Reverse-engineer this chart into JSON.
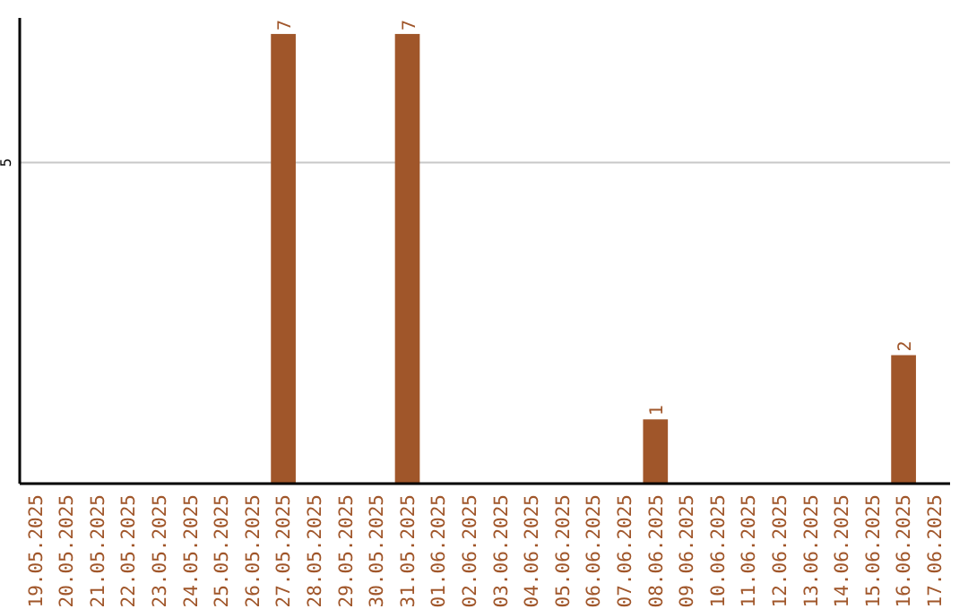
{
  "chart_data": {
    "type": "bar",
    "categories": [
      "19.05.2025",
      "20.05.2025",
      "21.05.2025",
      "22.05.2025",
      "23.05.2025",
      "24.05.2025",
      "25.05.2025",
      "26.05.2025",
      "27.05.2025",
      "28.05.2025",
      "29.05.2025",
      "30.05.2025",
      "31.05.2025",
      "01.06.2025",
      "02.06.2025",
      "03.06.2025",
      "04.06.2025",
      "05.06.2025",
      "06.06.2025",
      "07.06.2025",
      "08.06.2025",
      "09.06.2025",
      "10.06.2025",
      "11.06.2025",
      "12.06.2025",
      "13.06.2025",
      "14.06.2025",
      "15.06.2025",
      "16.06.2025",
      "17.06.2025"
    ],
    "values": [
      0,
      0,
      0,
      0,
      0,
      0,
      0,
      0,
      7,
      0,
      0,
      0,
      7,
      0,
      0,
      0,
      0,
      0,
      0,
      0,
      1,
      0,
      0,
      0,
      0,
      0,
      0,
      0,
      2,
      0
    ],
    "value_labels": [
      null,
      null,
      null,
      null,
      null,
      null,
      null,
      null,
      "7",
      null,
      null,
      null,
      "7",
      null,
      null,
      null,
      null,
      null,
      null,
      null,
      "1",
      null,
      null,
      null,
      null,
      null,
      null,
      null,
      "2",
      null
    ],
    "color": "#a0562a",
    "ylim": [
      0,
      7.25
    ],
    "yticks": [
      5
    ],
    "grid": "y"
  }
}
